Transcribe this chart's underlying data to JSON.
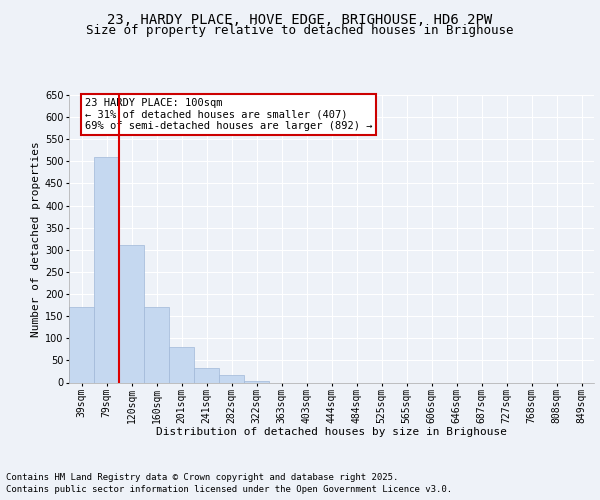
{
  "title_line1": "23, HARDY PLACE, HOVE EDGE, BRIGHOUSE, HD6 2PW",
  "title_line2": "Size of property relative to detached houses in Brighouse",
  "xlabel": "Distribution of detached houses by size in Brighouse",
  "ylabel": "Number of detached properties",
  "categories": [
    "39sqm",
    "79sqm",
    "120sqm",
    "160sqm",
    "201sqm",
    "241sqm",
    "282sqm",
    "322sqm",
    "363sqm",
    "403sqm",
    "444sqm",
    "484sqm",
    "525sqm",
    "565sqm",
    "606sqm",
    "646sqm",
    "687sqm",
    "727sqm",
    "768sqm",
    "808sqm",
    "849sqm"
  ],
  "values": [
    170,
    510,
    310,
    170,
    80,
    33,
    18,
    3,
    0,
    0,
    0,
    0,
    0,
    0,
    0,
    0,
    0,
    0,
    0,
    0,
    0
  ],
  "bar_color": "#c5d8f0",
  "bar_edge_color": "#a0b8d8",
  "annotation_text": "23 HARDY PLACE: 100sqm\n← 31% of detached houses are smaller (407)\n69% of semi-detached houses are larger (892) →",
  "annotation_box_color": "#ffffff",
  "annotation_box_edge": "#cc0000",
  "ylim": [
    0,
    650
  ],
  "yticks": [
    0,
    50,
    100,
    150,
    200,
    250,
    300,
    350,
    400,
    450,
    500,
    550,
    600,
    650
  ],
  "background_color": "#eef2f8",
  "grid_color": "#ffffff",
  "footer_line1": "Contains HM Land Registry data © Crown copyright and database right 2025.",
  "footer_line2": "Contains public sector information licensed under the Open Government Licence v3.0.",
  "red_line_color": "#dd0000",
  "title_fontsize": 10,
  "subtitle_fontsize": 9,
  "axis_label_fontsize": 8,
  "tick_fontsize": 7,
  "annotation_fontsize": 7.5,
  "footer_fontsize": 6.5
}
